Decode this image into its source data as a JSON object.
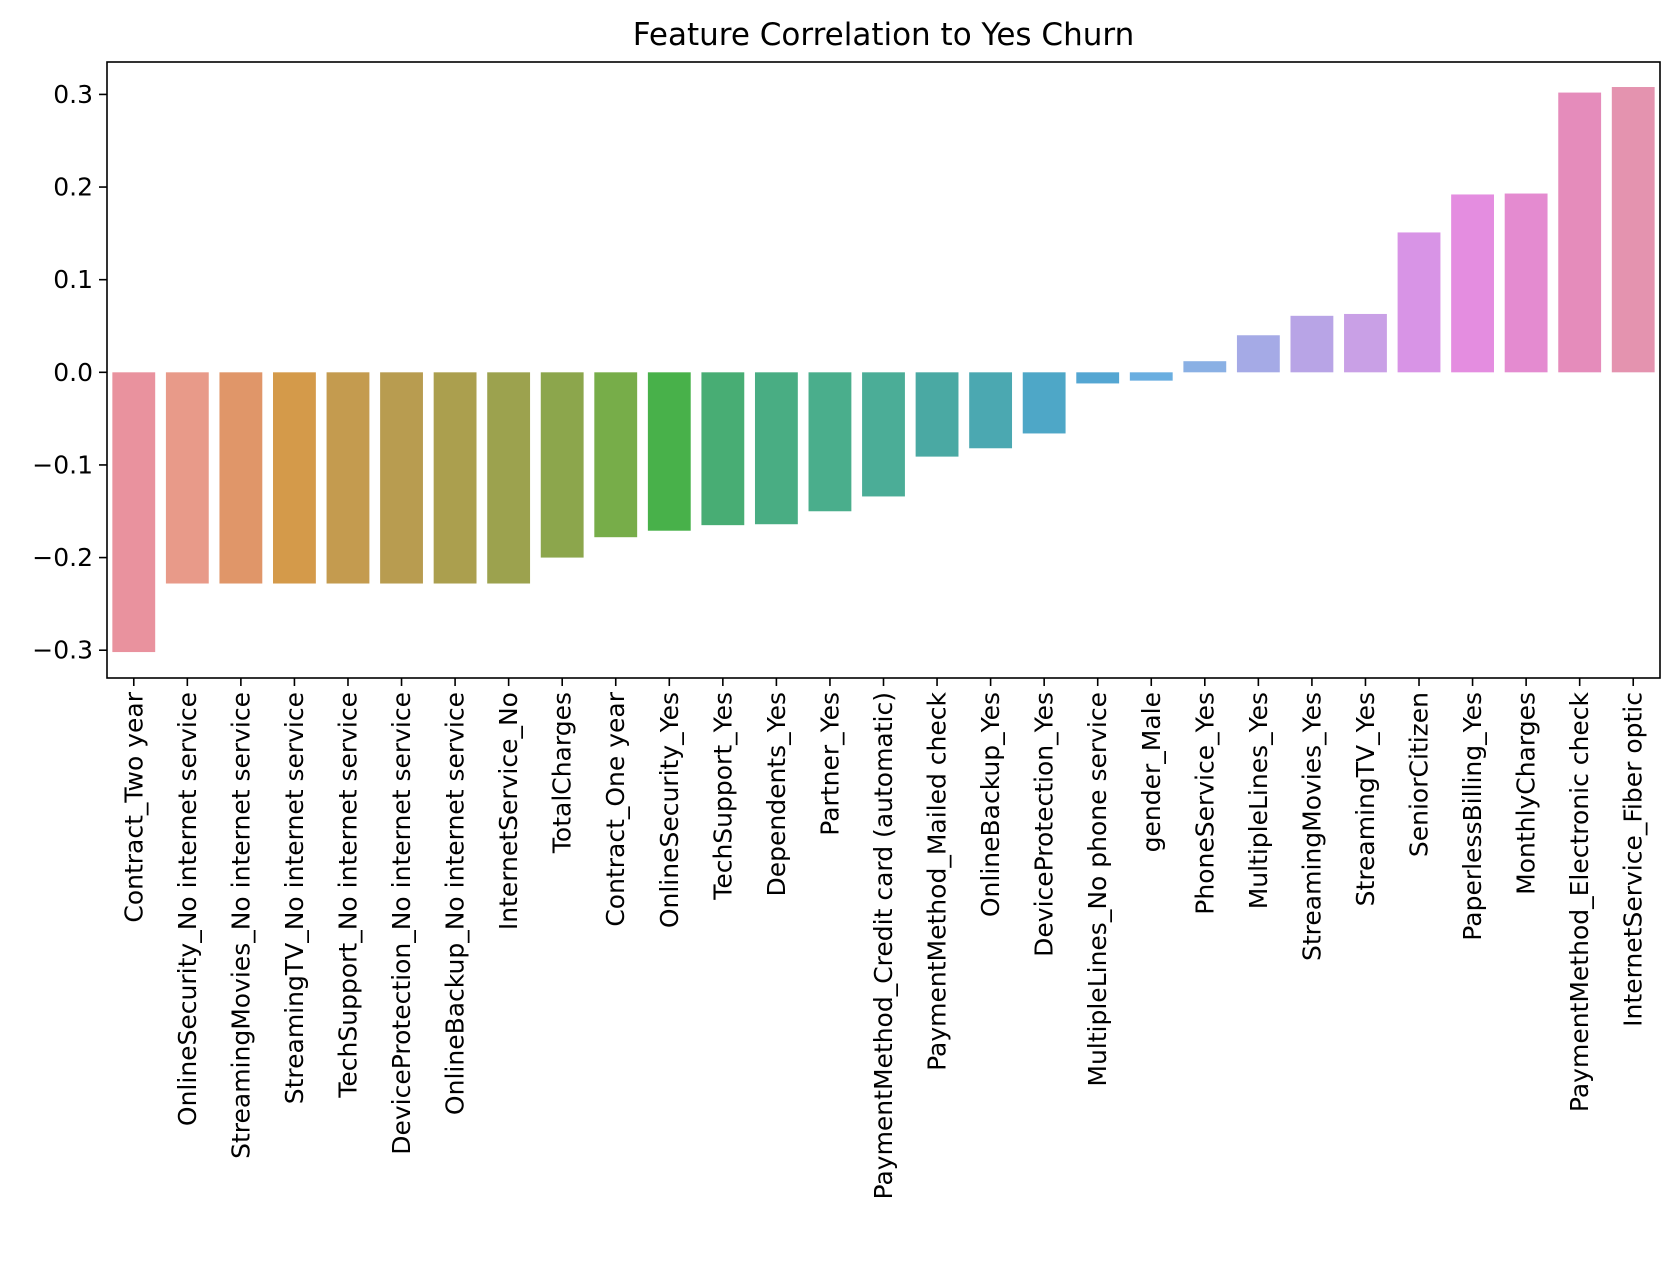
{
  "chart_data": {
    "type": "bar",
    "title": "Feature Correlation to Yes Churn",
    "xlabel": "",
    "ylabel": "",
    "ylim": [
      -0.33,
      0.335
    ],
    "yticks": [
      -0.3,
      -0.2,
      -0.1,
      0.0,
      0.1,
      0.2,
      0.3
    ],
    "ytick_labels": [
      "−0.3",
      "−0.2",
      "−0.1",
      "0.0",
      "0.1",
      "0.2",
      "0.3"
    ],
    "grid": false,
    "legend": "none",
    "categories": [
      "Contract_Two year",
      "OnlineSecurity_No internet service",
      "StreamingMovies_No internet service",
      "StreamingTV_No internet service",
      "TechSupport_No internet service",
      "DeviceProtection_No internet service",
      "OnlineBackup_No internet service",
      "InternetService_No",
      "TotalCharges",
      "Contract_One year",
      "OnlineSecurity_Yes",
      "TechSupport_Yes",
      "Dependents_Yes",
      "Partner_Yes",
      "PaymentMethod_Credit card (automatic)",
      "PaymentMethod_Mailed check",
      "OnlineBackup_Yes",
      "DeviceProtection_Yes",
      "MultipleLines_No phone service",
      "gender_Male",
      "PhoneService_Yes",
      "MultipleLines_Yes",
      "StreamingMovies_Yes",
      "StreamingTV_Yes",
      "SeniorCitizen",
      "PaperlessBilling_Yes",
      "MonthlyCharges",
      "PaymentMethod_Electronic check",
      "InternetService_Fiber optic"
    ],
    "values": [
      -0.302,
      -0.228,
      -0.228,
      -0.228,
      -0.228,
      -0.228,
      -0.228,
      -0.228,
      -0.2,
      -0.178,
      -0.171,
      -0.165,
      -0.164,
      -0.15,
      -0.134,
      -0.091,
      -0.082,
      -0.066,
      -0.012,
      -0.009,
      0.012,
      0.04,
      0.061,
      0.063,
      0.151,
      0.192,
      0.193,
      0.302,
      0.308
    ],
    "colors": [
      "#e9929e",
      "#e89a89",
      "#e09669",
      "#d49a4a",
      "#c49b4f",
      "#b89c50",
      "#ab9f4e",
      "#9ca24e",
      "#8ca64c",
      "#77ad49",
      "#48b14a",
      "#48ad74",
      "#49ad83",
      "#4aae8c",
      "#4bad97",
      "#4aa9a3",
      "#4ba8b1",
      "#4ea7c7",
      "#54a6d2",
      "#6aaee0",
      "#8ab0e4",
      "#a5aae6",
      "#b8a4e6",
      "#c9a0e6",
      "#d894e6",
      "#e48de0",
      "#e48bd0",
      "#e58cbb",
      "#e493af"
    ]
  }
}
